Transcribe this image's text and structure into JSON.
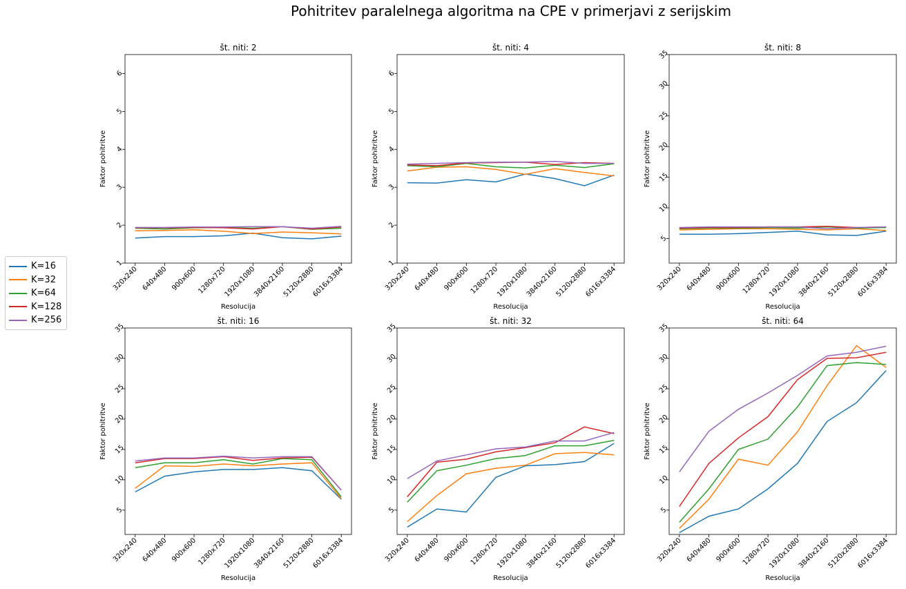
{
  "figure_title": "Pohitritev paralelnega algoritma na CPE v primerjavi z serijskim",
  "legend": [
    {
      "label": "K=16",
      "color": "#1f77b4"
    },
    {
      "label": "K=32",
      "color": "#ff7f0e"
    },
    {
      "label": "K=64",
      "color": "#2ca02c"
    },
    {
      "label": "K=128",
      "color": "#d62728"
    },
    {
      "label": "K=256",
      "color": "#9467bd"
    }
  ],
  "chart_data": [
    {
      "type": "line",
      "title": "št. niti: 2",
      "xlabel": "Resolucija",
      "ylabel": "Faktor pohitritve",
      "categories": [
        "320x240",
        "640x480",
        "900x600",
        "1280x720",
        "1920x1080",
        "3840x2160",
        "5120x2880",
        "6016x3384"
      ],
      "ylim": [
        1,
        6.5
      ],
      "yticks": [
        1,
        2,
        3,
        4,
        5,
        6
      ],
      "series": [
        {
          "name": "K=16",
          "values": [
            1.66,
            1.7,
            1.7,
            1.72,
            1.79,
            1.67,
            1.64,
            1.71
          ]
        },
        {
          "name": "K=32",
          "values": [
            1.85,
            1.86,
            1.88,
            1.84,
            1.78,
            1.82,
            1.8,
            1.77
          ]
        },
        {
          "name": "K=64",
          "values": [
            1.92,
            1.9,
            1.93,
            1.94,
            1.92,
            1.96,
            1.89,
            1.92
          ]
        },
        {
          "name": "K=128",
          "values": [
            1.93,
            1.93,
            1.94,
            1.93,
            1.9,
            1.96,
            1.9,
            1.95
          ]
        },
        {
          "name": "K=256",
          "values": [
            1.94,
            1.94,
            1.95,
            1.95,
            1.96,
            1.96,
            1.92,
            1.97
          ]
        }
      ]
    },
    {
      "type": "line",
      "title": "št. niti: 4",
      "xlabel": "Resolucija",
      "ylabel": "Faktor pohitritve",
      "categories": [
        "320x240",
        "640x480",
        "900x600",
        "1280x720",
        "1920x1080",
        "3840x2160",
        "5120x2880",
        "6016x3384"
      ],
      "ylim": [
        1,
        6.5
      ],
      "yticks": [
        1,
        2,
        3,
        4,
        5,
        6
      ],
      "series": [
        {
          "name": "K=16",
          "values": [
            3.12,
            3.11,
            3.2,
            3.14,
            3.35,
            3.23,
            3.04,
            3.32
          ]
        },
        {
          "name": "K=32",
          "values": [
            3.43,
            3.53,
            3.54,
            3.47,
            3.34,
            3.49,
            3.39,
            3.3
          ]
        },
        {
          "name": "K=64",
          "values": [
            3.57,
            3.54,
            3.63,
            3.54,
            3.51,
            3.58,
            3.52,
            3.62
          ]
        },
        {
          "name": "K=128",
          "values": [
            3.59,
            3.57,
            3.64,
            3.65,
            3.66,
            3.6,
            3.65,
            3.63
          ]
        },
        {
          "name": "K=256",
          "values": [
            3.61,
            3.63,
            3.65,
            3.66,
            3.66,
            3.68,
            3.63,
            3.63
          ]
        }
      ]
    },
    {
      "type": "line",
      "title": "št. niti: 8",
      "xlabel": "Resolucija",
      "ylabel": "Faktor pohitritve",
      "categories": [
        "320x240",
        "640x480",
        "900x600",
        "1280x720",
        "1920x1080",
        "3840x2160",
        "5120x2880",
        "6016x3384"
      ],
      "ylim": [
        1,
        35
      ],
      "yticks": [
        5,
        10,
        15,
        20,
        25,
        30,
        35
      ],
      "series": [
        {
          "name": "K=16",
          "values": [
            5.7,
            5.7,
            5.8,
            6.0,
            6.2,
            5.6,
            5.5,
            6.2
          ]
        },
        {
          "name": "K=32",
          "values": [
            6.4,
            6.5,
            6.6,
            6.6,
            6.5,
            6.4,
            6.6,
            6.3
          ]
        },
        {
          "name": "K=64",
          "values": [
            6.6,
            6.7,
            6.7,
            6.8,
            6.7,
            6.9,
            6.7,
            6.8
          ]
        },
        {
          "name": "K=128",
          "values": [
            6.7,
            6.8,
            6.8,
            6.9,
            6.9,
            7.0,
            6.8,
            6.9
          ]
        },
        {
          "name": "K=256",
          "values": [
            6.8,
            6.9,
            6.9,
            6.9,
            6.9,
            6.6,
            6.8,
            6.9
          ]
        }
      ]
    },
    {
      "type": "line",
      "title": "št. niti: 16",
      "xlabel": "Resolucija",
      "ylabel": "Faktor pohitritve",
      "categories": [
        "320x240",
        "640x480",
        "900x600",
        "1280x720",
        "1920x1080",
        "3840x2160",
        "5120x2880",
        "6016x3384"
      ],
      "ylim": [
        1,
        35
      ],
      "yticks": [
        5,
        10,
        15,
        20,
        25,
        30,
        35
      ],
      "series": [
        {
          "name": "K=16",
          "values": [
            8.0,
            10.6,
            11.3,
            11.7,
            11.7,
            12.0,
            11.5,
            6.8
          ]
        },
        {
          "name": "K=32",
          "values": [
            8.6,
            12.3,
            12.2,
            12.6,
            12.3,
            12.6,
            12.8,
            6.9
          ]
        },
        {
          "name": "K=64",
          "values": [
            12.0,
            12.8,
            12.8,
            13.3,
            12.6,
            13.5,
            13.3,
            7.2
          ]
        },
        {
          "name": "K=128",
          "values": [
            12.8,
            13.5,
            13.5,
            13.8,
            13.2,
            13.6,
            13.7,
            8.3
          ]
        },
        {
          "name": "K=256",
          "values": [
            13.1,
            13.6,
            13.6,
            13.9,
            13.6,
            13.8,
            13.8,
            8.3
          ]
        }
      ]
    },
    {
      "type": "line",
      "title": "št. niti: 32",
      "xlabel": "Resolucija",
      "ylabel": "Faktor pohitritve",
      "categories": [
        "320x240",
        "640x480",
        "900x600",
        "1280x720",
        "1920x1080",
        "3840x2160",
        "5120x2880",
        "6016x3384"
      ],
      "ylim": [
        1,
        35
      ],
      "yticks": [
        5,
        10,
        15,
        20,
        25,
        30,
        35
      ],
      "series": [
        {
          "name": "K=16",
          "values": [
            2.2,
            5.2,
            4.7,
            10.4,
            12.3,
            12.5,
            13.0,
            16.0
          ]
        },
        {
          "name": "K=32",
          "values": [
            3.1,
            7.4,
            11.0,
            11.9,
            12.4,
            14.3,
            14.5,
            14.1
          ]
        },
        {
          "name": "K=64",
          "values": [
            6.3,
            11.5,
            12.4,
            13.5,
            14.0,
            15.6,
            15.6,
            16.5
          ]
        },
        {
          "name": "K=128",
          "values": [
            7.2,
            12.9,
            13.4,
            14.6,
            15.3,
            16.1,
            18.7,
            17.6
          ]
        },
        {
          "name": "K=256",
          "values": [
            10.2,
            13.1,
            14.1,
            15.1,
            15.4,
            16.4,
            16.4,
            17.8
          ]
        }
      ]
    },
    {
      "type": "line",
      "title": "št. niti: 64",
      "xlabel": "Resolucija",
      "ylabel": "Faktor pohitritve",
      "categories": [
        "320x240",
        "640x480",
        "900x600",
        "1280x720",
        "1920x1080",
        "3840x2160",
        "5120x2880",
        "6016x3384"
      ],
      "ylim": [
        1,
        35
      ],
      "yticks": [
        5,
        10,
        15,
        20,
        25,
        30,
        35
      ],
      "series": [
        {
          "name": "K=16",
          "values": [
            1.3,
            4.0,
            5.2,
            8.5,
            12.7,
            19.6,
            22.7,
            28.0
          ]
        },
        {
          "name": "K=32",
          "values": [
            2.0,
            6.8,
            13.4,
            12.4,
            17.9,
            25.5,
            32.1,
            28.5
          ]
        },
        {
          "name": "K=64",
          "values": [
            3.0,
            8.5,
            15.0,
            16.7,
            22.0,
            28.8,
            29.3,
            29.0
          ]
        },
        {
          "name": "K=128",
          "values": [
            5.6,
            12.7,
            16.9,
            20.4,
            26.5,
            30.0,
            30.1,
            31.0
          ]
        },
        {
          "name": "K=256",
          "values": [
            11.3,
            18.0,
            21.6,
            24.3,
            27.2,
            30.4,
            31.0,
            32.0
          ]
        }
      ]
    }
  ]
}
